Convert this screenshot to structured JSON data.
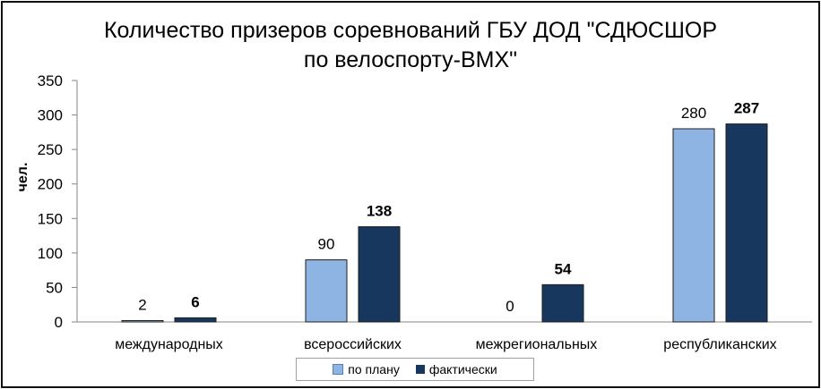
{
  "chart_data": {
    "type": "bar",
    "title": "Количество призеров соревнований ГБУ ДОД \"СДЮСШОР по велоспорту-ВМХ\"",
    "title_lines": [
      "Количество призеров соревнований ГБУ ДОД \"СДЮСШОР",
      "по велоспорту-ВМХ\""
    ],
    "xlabel": "",
    "ylabel": "чел.",
    "ylim": [
      0,
      350
    ],
    "yticks": [
      "0",
      "50",
      "100",
      "150",
      "200",
      "250",
      "300",
      "350"
    ],
    "categories": [
      "международных",
      "всероссийских",
      "межрегиональных",
      "республиканских"
    ],
    "series": [
      {
        "name": "по плану",
        "values": [
          2,
          90,
          0,
          280
        ],
        "color": "#8eb4e3",
        "labels_bold": false
      },
      {
        "name": "фактически",
        "values": [
          6,
          138,
          54,
          287
        ],
        "color": "#17375e",
        "labels_bold": true
      }
    ],
    "legend_position": "bottom",
    "grid": false
  }
}
